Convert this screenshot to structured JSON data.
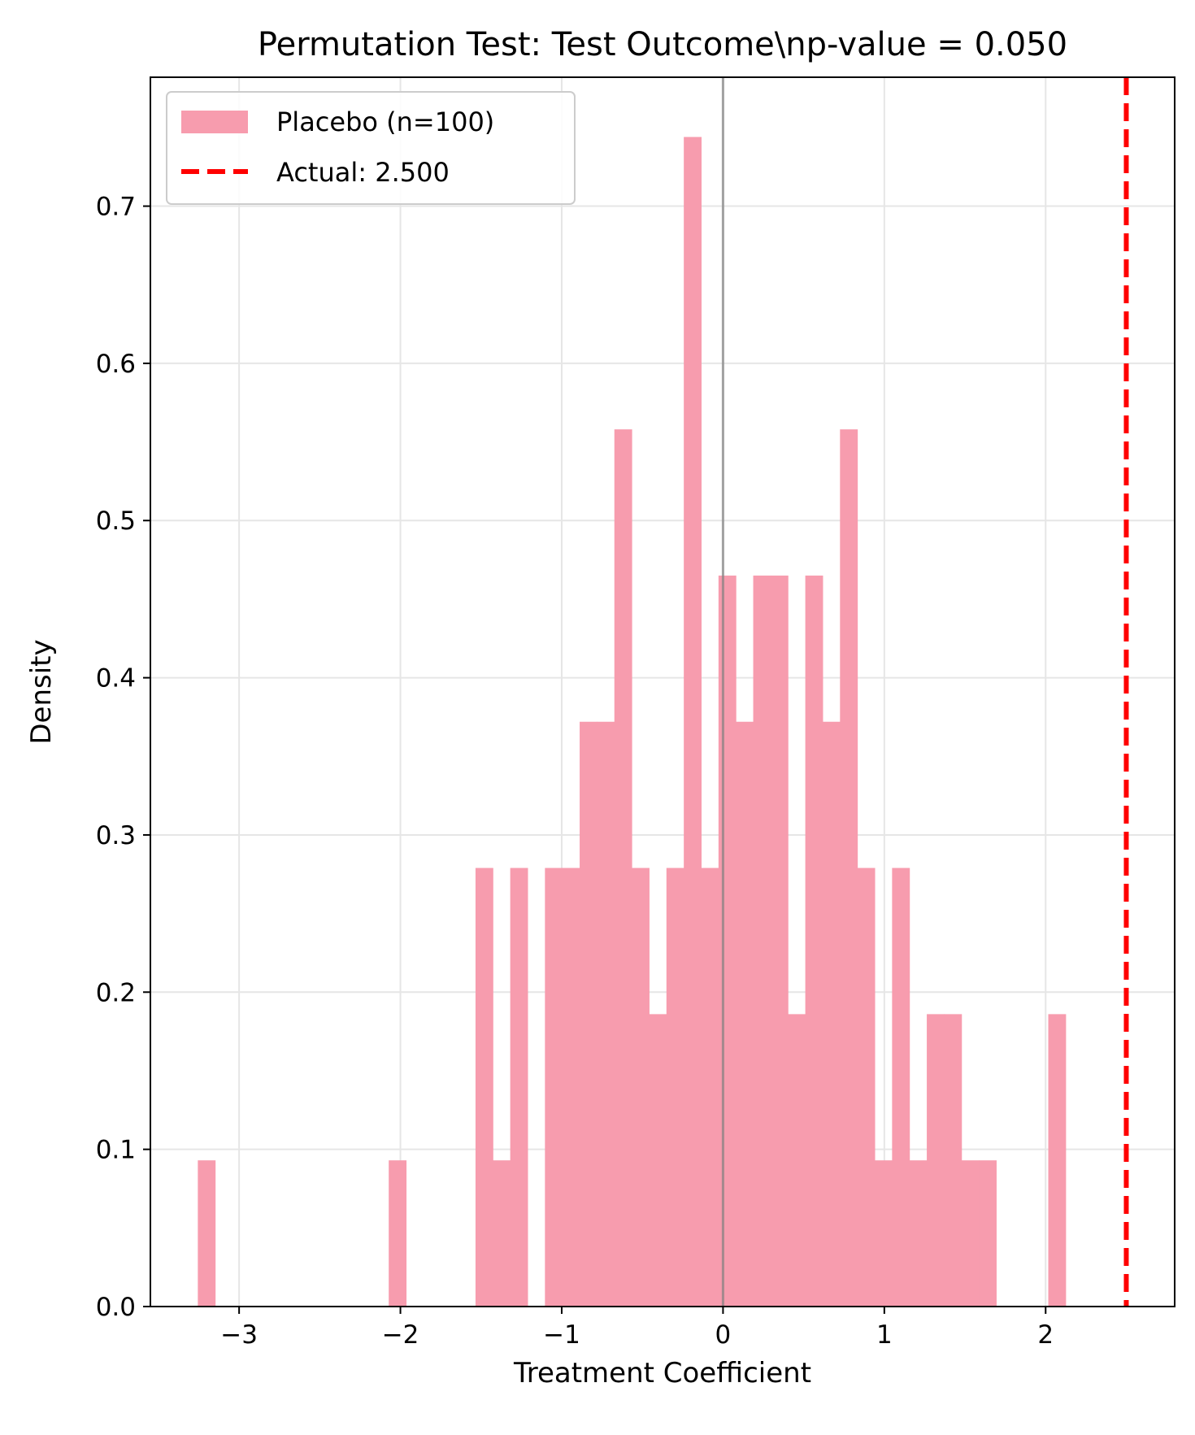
{
  "chart_data": {
    "type": "bar",
    "title": "Permutation Test: Test Outcome\\np-value = 0.050",
    "xlabel": "Treatment Coefficient",
    "ylabel": "Density",
    "xlim": [
      -3.55,
      2.8
    ],
    "ylim": [
      0,
      0.782
    ],
    "xticks": [
      {
        "value": -3,
        "label": "−3"
      },
      {
        "value": -2,
        "label": "−2"
      },
      {
        "value": -1,
        "label": "−1"
      },
      {
        "value": 0,
        "label": "0"
      },
      {
        "value": 1,
        "label": "1"
      },
      {
        "value": 2,
        "label": "2"
      }
    ],
    "yticks": [
      {
        "value": 0.0,
        "label": "0.0"
      },
      {
        "value": 0.1,
        "label": "0.1"
      },
      {
        "value": 0.2,
        "label": "0.2"
      },
      {
        "value": 0.3,
        "label": "0.3"
      },
      {
        "value": 0.4,
        "label": "0.4"
      },
      {
        "value": 0.5,
        "label": "0.5"
      },
      {
        "value": 0.6,
        "label": "0.6"
      },
      {
        "value": 0.7,
        "label": "0.7"
      }
    ],
    "grid": true,
    "bins": {
      "start": -3.256,
      "width": 0.1076,
      "density": [
        0.093,
        0,
        0,
        0,
        0,
        0,
        0,
        0,
        0,
        0,
        0,
        0.093,
        0,
        0,
        0,
        0,
        0.279,
        0.093,
        0.279,
        0,
        0.279,
        0.279,
        0.372,
        0.372,
        0.558,
        0.279,
        0.186,
        0.279,
        0.744,
        0.279,
        0.465,
        0.372,
        0.465,
        0.465,
        0.186,
        0.465,
        0.372,
        0.558,
        0.279,
        0.093,
        0.279,
        0.093,
        0.186,
        0.186,
        0.093,
        0.093,
        0,
        0,
        0,
        0.186
      ]
    },
    "reference_line": {
      "x": 0,
      "color": "#808080"
    },
    "actual_line": {
      "x": 2.5,
      "color": "#ff0000"
    },
    "legend": {
      "placement": "top-left",
      "entries": [
        {
          "label": "Placebo (n=100)",
          "color": "#f79cae",
          "kind": "patch"
        },
        {
          "label": "Actual: 2.500",
          "color": "#ff0000",
          "kind": "dashed-line"
        }
      ]
    },
    "bar_color": "#f79cae"
  }
}
